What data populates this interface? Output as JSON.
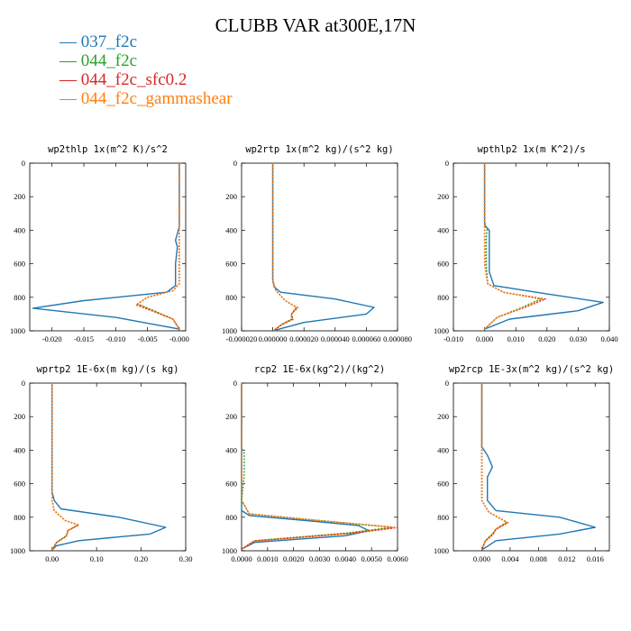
{
  "title": "CLUBB VAR at300E,17N",
  "legend": [
    {
      "label": "037_f2c",
      "color": "#1f77b4"
    },
    {
      "label": "044_f2c",
      "color": "#2ca02c"
    },
    {
      "label": "044_f2c_sfc0.2",
      "color": "#d62728"
    },
    {
      "label": "044_f2c_gammashear",
      "color": "#ff7f0e"
    }
  ],
  "chart_data": [
    {
      "type": "line",
      "title": "wp2thlp  1x(m^2 K)/s^2",
      "xlim": [
        -0.0235,
        0.001
      ],
      "ylim": [
        1000,
        0
      ],
      "xticks": [
        -0.02,
        -0.015,
        -0.01,
        -0.005,
        0.0
      ],
      "xtick_labels": [
        "-0.020",
        "-0.015",
        "-0.010",
        "-0.005",
        "-0.000"
      ],
      "yticks": [
        0,
        200,
        400,
        600,
        800,
        1000
      ],
      "series": [
        {
          "name": "037_f2c",
          "color": "#1f77b4",
          "x": [
            0.0,
            0.0,
            -0.0003,
            -0.0006,
            -0.0003,
            -0.0006,
            -0.0006,
            -0.002,
            -0.015,
            -0.023,
            -0.01,
            0.0
          ],
          "y": [
            0,
            380,
            420,
            460,
            500,
            600,
            730,
            770,
            820,
            865,
            920,
            990
          ]
        },
        {
          "name": "044_f2c",
          "color": "#2ca02c",
          "x": [
            0.0,
            0.0,
            0.0,
            -0.001,
            -0.005,
            -0.0065,
            -0.004,
            -0.001,
            0.0
          ],
          "y": [
            0,
            600,
            720,
            760,
            800,
            840,
            880,
            930,
            990
          ]
        },
        {
          "name": "044_f2c_sfc0.2",
          "color": "#d62728",
          "x": [
            0.0,
            0.0,
            0.0,
            -0.001,
            -0.005,
            -0.0068,
            -0.004,
            -0.001,
            0.0
          ],
          "y": [
            0,
            600,
            720,
            760,
            800,
            845,
            885,
            930,
            990
          ]
        },
        {
          "name": "044_f2c_gammashear",
          "color": "#ff7f0e",
          "x": [
            0.0,
            0.0,
            0.0,
            -0.001,
            -0.005,
            -0.0066,
            -0.004,
            -0.001,
            0.0
          ],
          "y": [
            0,
            600,
            720,
            760,
            800,
            842,
            882,
            930,
            990
          ]
        }
      ]
    },
    {
      "type": "line",
      "title": "wp2rtp  1x(m^2 kg)/(s^2 kg)",
      "xlim": [
        -2e-05,
        8e-05
      ],
      "ylim": [
        1000,
        0
      ],
      "xticks": [
        -2e-05,
        0.0,
        2e-05,
        4e-05,
        6e-05,
        8e-05
      ],
      "xtick_labels": [
        "-0.000020",
        "0.000000",
        "0.000020",
        "0.000040",
        "0.000060",
        "0.000080"
      ],
      "yticks": [
        0,
        200,
        400,
        600,
        800,
        1000
      ],
      "series": [
        {
          "name": "037_f2c",
          "color": "#1f77b4",
          "x": [
            0.0,
            0.0,
            1e-06,
            5e-06,
            4e-05,
            6.5e-05,
            6e-05,
            2e-05,
            2e-06
          ],
          "y": [
            0,
            700,
            740,
            770,
            810,
            860,
            900,
            950,
            995
          ]
        },
        {
          "name": "044_f2c",
          "color": "#2ca02c",
          "x": [
            0.0,
            0.0,
            2e-06,
            8e-06,
            1.5e-05,
            1.2e-05,
            1.2e-05,
            6e-06,
            1e-06
          ],
          "y": [
            0,
            700,
            760,
            820,
            860,
            900,
            930,
            960,
            995
          ]
        },
        {
          "name": "044_f2c_sfc0.2",
          "color": "#d62728",
          "x": [
            0.0,
            0.0,
            2e-06,
            8e-06,
            1.6e-05,
            1.2e-05,
            1.3e-05,
            6e-06,
            1e-06
          ],
          "y": [
            0,
            700,
            760,
            820,
            862,
            900,
            932,
            962,
            995
          ]
        },
        {
          "name": "044_f2c_gammashear",
          "color": "#ff7f0e",
          "x": [
            0.0,
            0.0,
            2e-06,
            8e-06,
            1.55e-05,
            1.2e-05,
            1.25e-05,
            6e-06,
            1e-06
          ],
          "y": [
            0,
            700,
            760,
            820,
            861,
            900,
            931,
            961,
            995
          ]
        }
      ]
    },
    {
      "type": "line",
      "title": "wpthlp2  1x(m K^2)/s",
      "xlim": [
        -0.01,
        0.04
      ],
      "ylim": [
        1000,
        0
      ],
      "xticks": [
        -0.01,
        0.0,
        0.01,
        0.02,
        0.03,
        0.04
      ],
      "xtick_labels": [
        "-0.010",
        "0.000",
        "0.010",
        "0.020",
        "0.030",
        "0.040"
      ],
      "yticks": [
        0,
        200,
        400,
        600,
        800,
        1000
      ],
      "series": [
        {
          "name": "037_f2c",
          "color": "#1f77b4",
          "x": [
            0.0,
            0.0,
            0.0015,
            0.0015,
            0.0015,
            0.0015,
            0.003,
            0.02,
            0.038,
            0.03,
            0.008,
            0.0
          ],
          "y": [
            0,
            370,
            400,
            450,
            520,
            650,
            730,
            780,
            830,
            880,
            930,
            990
          ]
        },
        {
          "name": "044_f2c",
          "color": "#2ca02c",
          "x": [
            0.0,
            0.0,
            0.0008,
            0.0005,
            0.0005,
            0.001,
            0.006,
            0.018,
            0.012,
            0.004,
            0.0
          ],
          "y": [
            0,
            350,
            400,
            450,
            600,
            720,
            770,
            810,
            860,
            920,
            990
          ]
        },
        {
          "name": "044_f2c_sfc0.2",
          "color": "#d62728",
          "x": [
            0.0,
            0.0,
            0.0,
            0.0,
            0.001,
            0.006,
            0.0195,
            0.013,
            0.004,
            0.0
          ],
          "y": [
            0,
            350,
            450,
            600,
            720,
            770,
            810,
            860,
            920,
            990
          ]
        },
        {
          "name": "044_f2c_gammashear",
          "color": "#ff7f0e",
          "x": [
            0.0,
            0.0,
            0.0,
            0.0,
            0.001,
            0.006,
            0.0185,
            0.0125,
            0.004,
            0.0
          ],
          "y": [
            0,
            350,
            450,
            600,
            720,
            770,
            810,
            860,
            920,
            990
          ]
        }
      ]
    },
    {
      "type": "line",
      "title": "wprtp2  1E-6x(m kg)/(s kg)",
      "xlim": [
        -0.05,
        0.3
      ],
      "ylim": [
        1000,
        0
      ],
      "xticks": [
        0.0,
        0.1,
        0.2,
        0.3
      ],
      "xtick_labels": [
        "0.00",
        "0.10",
        "0.20",
        "0.30"
      ],
      "yticks": [
        0,
        200,
        400,
        600,
        800,
        1000
      ],
      "series": [
        {
          "name": "037_f2c",
          "color": "#1f77b4",
          "x": [
            0.0,
            0.0,
            0.005,
            0.02,
            0.15,
            0.255,
            0.22,
            0.06,
            0.01,
            0.0
          ],
          "y": [
            0,
            650,
            700,
            750,
            800,
            860,
            900,
            940,
            970,
            995
          ]
        },
        {
          "name": "044_f2c",
          "color": "#2ca02c",
          "x": [
            0.0,
            0.0,
            0.005,
            0.03,
            0.058,
            0.035,
            0.032,
            0.01,
            0.0
          ],
          "y": [
            0,
            700,
            760,
            820,
            845,
            880,
            910,
            950,
            995
          ]
        },
        {
          "name": "044_f2c_sfc0.2",
          "color": "#d62728",
          "x": [
            0.0,
            0.0,
            0.005,
            0.03,
            0.06,
            0.036,
            0.033,
            0.01,
            0.0
          ],
          "y": [
            0,
            700,
            760,
            820,
            846,
            880,
            912,
            952,
            995
          ]
        },
        {
          "name": "044_f2c_gammashear",
          "color": "#ff7f0e",
          "x": [
            0.0,
            0.0,
            0.005,
            0.03,
            0.059,
            0.035,
            0.0325,
            0.01,
            0.0
          ],
          "y": [
            0,
            700,
            760,
            820,
            845,
            880,
            911,
            951,
            995
          ]
        }
      ]
    },
    {
      "type": "line",
      "title": "rcp2  1E-6x(kg^2)/(kg^2)",
      "xlim": [
        0.0,
        0.006
      ],
      "ylim": [
        1000,
        0
      ],
      "xticks": [
        0.0,
        0.001,
        0.002,
        0.003,
        0.004,
        0.005,
        0.006
      ],
      "xtick_labels": [
        "0.0000",
        "0.0010",
        "0.0020",
        "0.0030",
        "0.0040",
        "0.0050",
        "0.0060"
      ],
      "yticks": [
        0,
        200,
        400,
        600,
        800,
        1000
      ],
      "series": [
        {
          "name": "037_f2c",
          "color": "#1f77b4",
          "x": [
            0.0,
            0.0,
            0.0003,
            0.0025,
            0.0045,
            0.0049,
            0.004,
            0.0005,
            0.0
          ],
          "y": [
            0,
            760,
            790,
            820,
            850,
            880,
            910,
            950,
            990
          ]
        },
        {
          "name": "044_f2c",
          "color": "#2ca02c",
          "x": [
            0.0,
            0.0,
            0.0001,
            0.0001,
            0.0,
            0.0003,
            0.003,
            0.0058,
            0.004,
            0.0005,
            0.0
          ],
          "y": [
            0,
            380,
            420,
            550,
            700,
            780,
            820,
            860,
            895,
            940,
            990
          ]
        },
        {
          "name": "044_f2c_sfc0.2",
          "color": "#d62728",
          "x": [
            0.0,
            0.0,
            0.0,
            0.0003,
            0.003,
            0.006,
            0.0042,
            0.0005,
            0.0
          ],
          "y": [
            0,
            450,
            700,
            780,
            820,
            862,
            897,
            942,
            990
          ]
        },
        {
          "name": "044_f2c_gammashear",
          "color": "#ff7f0e",
          "x": [
            0.0,
            0.0,
            0.0,
            0.0003,
            0.003,
            0.0059,
            0.0041,
            0.0005,
            0.0
          ],
          "y": [
            0,
            450,
            700,
            780,
            820,
            861,
            896,
            941,
            990
          ]
        }
      ]
    },
    {
      "type": "line",
      "title": "wp2rcp  1E-3x(m^2 kg)/(s^2 kg)",
      "xlim": [
        -0.004,
        0.018
      ],
      "ylim": [
        1000,
        0
      ],
      "xticks": [
        0.0,
        0.004,
        0.008,
        0.012,
        0.016
      ],
      "xtick_labels": [
        "0.000",
        "0.004",
        "0.008",
        "0.012",
        "0.016"
      ],
      "yticks": [
        0,
        200,
        400,
        600,
        800,
        1000
      ],
      "series": [
        {
          "name": "037_f2c",
          "color": "#1f77b4",
          "x": [
            0.0,
            0.0,
            0.0008,
            0.0015,
            0.0008,
            0.0008,
            0.002,
            0.011,
            0.016,
            0.011,
            0.002,
            0.0
          ],
          "y": [
            0,
            380,
            430,
            500,
            560,
            700,
            760,
            800,
            860,
            900,
            940,
            995
          ]
        },
        {
          "name": "044_f2c",
          "color": "#2ca02c",
          "x": [
            0.0,
            0.0,
            0.001,
            0.0035,
            0.002,
            0.0015,
            0.0005,
            0.0
          ],
          "y": [
            0,
            700,
            770,
            830,
            870,
            900,
            940,
            995
          ]
        },
        {
          "name": "044_f2c_sfc0.2",
          "color": "#d62728",
          "x": [
            0.0,
            0.0,
            0.001,
            0.0037,
            0.002,
            0.0016,
            0.0005,
            0.0
          ],
          "y": [
            0,
            700,
            770,
            832,
            872,
            902,
            942,
            995
          ]
        },
        {
          "name": "044_f2c_gammashear",
          "color": "#ff7f0e",
          "x": [
            0.0,
            0.0,
            0.001,
            0.0036,
            0.002,
            0.0015,
            0.0005,
            0.0
          ],
          "y": [
            0,
            700,
            770,
            831,
            871,
            901,
            941,
            995
          ]
        }
      ]
    }
  ]
}
